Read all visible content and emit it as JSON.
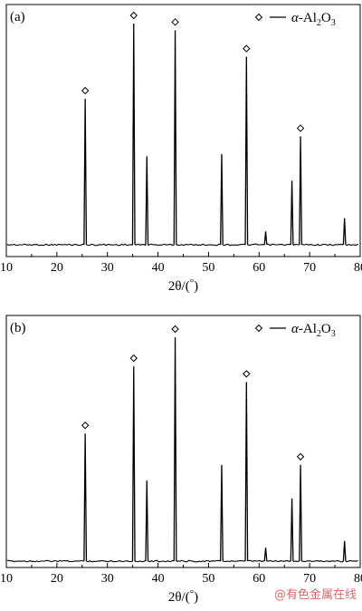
{
  "chart_data": [
    {
      "type": "line",
      "panel_label": "(a)",
      "legend_label": "α-Al2O3",
      "legend_text": {
        "prefix": "α",
        "main": "-Al",
        "sub1": "2",
        "mid": "O",
        "sub2": "3"
      },
      "legend_position": "top-right",
      "xlabel": {
        "main": "2θ/(",
        "sup": "°",
        "end": ")"
      },
      "ylabel": "",
      "xlim": [
        10,
        80
      ],
      "xticks": [
        10,
        20,
        30,
        40,
        50,
        60,
        70,
        80
      ],
      "grid": false,
      "peaks": [
        {
          "x": 25.6,
          "y": 0.66,
          "marked": true
        },
        {
          "x": 35.2,
          "y": 1.0,
          "marked": true
        },
        {
          "x": 37.8,
          "y": 0.4,
          "marked": false
        },
        {
          "x": 43.4,
          "y": 0.97,
          "marked": true
        },
        {
          "x": 52.6,
          "y": 0.41,
          "marked": false
        },
        {
          "x": 57.5,
          "y": 0.85,
          "marked": true
        },
        {
          "x": 61.3,
          "y": 0.06,
          "marked": false
        },
        {
          "x": 66.5,
          "y": 0.29,
          "marked": false
        },
        {
          "x": 68.2,
          "y": 0.49,
          "marked": true
        },
        {
          "x": 76.9,
          "y": 0.12,
          "marked": false
        }
      ]
    },
    {
      "type": "line",
      "panel_label": "(b)",
      "legend_label": "α-Al2O3",
      "legend_text": {
        "prefix": "α",
        "main": "-Al",
        "sub1": "2",
        "mid": "O",
        "sub2": "3"
      },
      "legend_position": "top-right",
      "xlabel": {
        "main": "2θ/(",
        "sup": "°",
        "end": ")"
      },
      "ylabel": "",
      "xlim": [
        10,
        80
      ],
      "xticks": [
        10,
        20,
        30,
        40,
        50,
        60,
        70,
        80
      ],
      "grid": false,
      "peaks": [
        {
          "x": 25.6,
          "y": 0.57,
          "marked": true
        },
        {
          "x": 35.2,
          "y": 0.87,
          "marked": true
        },
        {
          "x": 37.8,
          "y": 0.36,
          "marked": false
        },
        {
          "x": 43.4,
          "y": 1.0,
          "marked": true
        },
        {
          "x": 52.6,
          "y": 0.43,
          "marked": false
        },
        {
          "x": 57.5,
          "y": 0.8,
          "marked": true
        },
        {
          "x": 61.3,
          "y": 0.06,
          "marked": false
        },
        {
          "x": 66.5,
          "y": 0.28,
          "marked": false
        },
        {
          "x": 68.2,
          "y": 0.43,
          "marked": true
        },
        {
          "x": 76.9,
          "y": 0.09,
          "marked": false
        }
      ]
    }
  ],
  "watermark": "@有色金属在线"
}
